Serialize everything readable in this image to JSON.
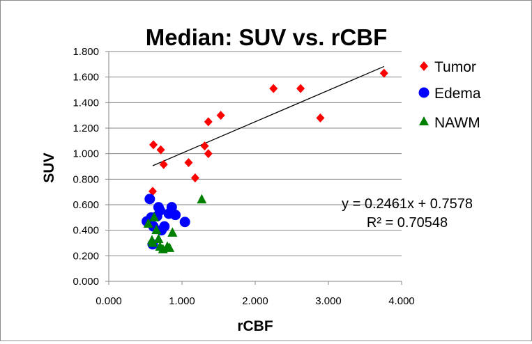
{
  "chart_data": {
    "type": "scatter",
    "title": "Median: SUV vs. rCBF",
    "xlabel": "rCBF",
    "ylabel": "SUV",
    "xlim": [
      0,
      4
    ],
    "ylim": [
      0,
      1.8
    ],
    "x_ticks": [
      0,
      1,
      2,
      3,
      4
    ],
    "y_ticks": [
      0,
      0.2,
      0.4,
      0.6,
      0.8,
      1.0,
      1.2,
      1.4,
      1.6,
      1.8
    ],
    "x_tick_labels": [
      "0.000",
      "1.000",
      "2.000",
      "3.000",
      "4.000"
    ],
    "y_tick_labels": [
      "0.000",
      "0.200",
      "0.400",
      "0.600",
      "0.800",
      "1.000",
      "1.200",
      "1.400",
      "1.600",
      "1.800"
    ],
    "grid": "horizontal",
    "legend_position": "right",
    "series": [
      {
        "name": "Tumor",
        "marker": "diamond",
        "color": "#ff0000",
        "points": [
          [
            0.6,
            0.705
          ],
          [
            0.61,
            1.07
          ],
          [
            0.71,
            1.03
          ],
          [
            0.75,
            0.915
          ],
          [
            1.09,
            0.93
          ],
          [
            1.18,
            0.81
          ],
          [
            1.31,
            1.06
          ],
          [
            1.36,
            1.0
          ],
          [
            1.36,
            1.25
          ],
          [
            1.53,
            1.3
          ],
          [
            2.25,
            1.51
          ],
          [
            2.62,
            1.51
          ],
          [
            2.89,
            1.28
          ],
          [
            3.76,
            1.63
          ]
        ]
      },
      {
        "name": "Edema",
        "marker": "circle",
        "color": "#0000ff",
        "points": [
          [
            0.52,
            0.47
          ],
          [
            0.56,
            0.645
          ],
          [
            0.6,
            0.29
          ],
          [
            0.61,
            0.43
          ],
          [
            0.66,
            0.51
          ],
          [
            0.68,
            0.58
          ],
          [
            0.7,
            0.555
          ],
          [
            0.72,
            0.4
          ],
          [
            0.76,
            0.43
          ],
          [
            0.82,
            0.53
          ],
          [
            0.86,
            0.58
          ],
          [
            0.91,
            0.52
          ],
          [
            1.04,
            0.465
          ],
          [
            0.58,
            0.5
          ]
        ]
      },
      {
        "name": "NAWM",
        "marker": "triangle",
        "color": "#008000",
        "points": [
          [
            0.54,
            0.45
          ],
          [
            0.59,
            0.32
          ],
          [
            0.62,
            0.5
          ],
          [
            0.65,
            0.4
          ],
          [
            0.68,
            0.33
          ],
          [
            0.7,
            0.27
          ],
          [
            0.74,
            0.25
          ],
          [
            0.8,
            0.27
          ],
          [
            0.83,
            0.26
          ],
          [
            0.87,
            0.38
          ],
          [
            1.27,
            0.64
          ],
          [
            0.6,
            0.3
          ]
        ]
      }
    ],
    "trendline": {
      "series": "Tumor",
      "slope": 0.2461,
      "intercept": 0.7578,
      "x_range": [
        0.6,
        3.76
      ],
      "equation_label": "y = 0.2461x + 0.7578",
      "r2_label": "R² = 0.70548"
    }
  }
}
